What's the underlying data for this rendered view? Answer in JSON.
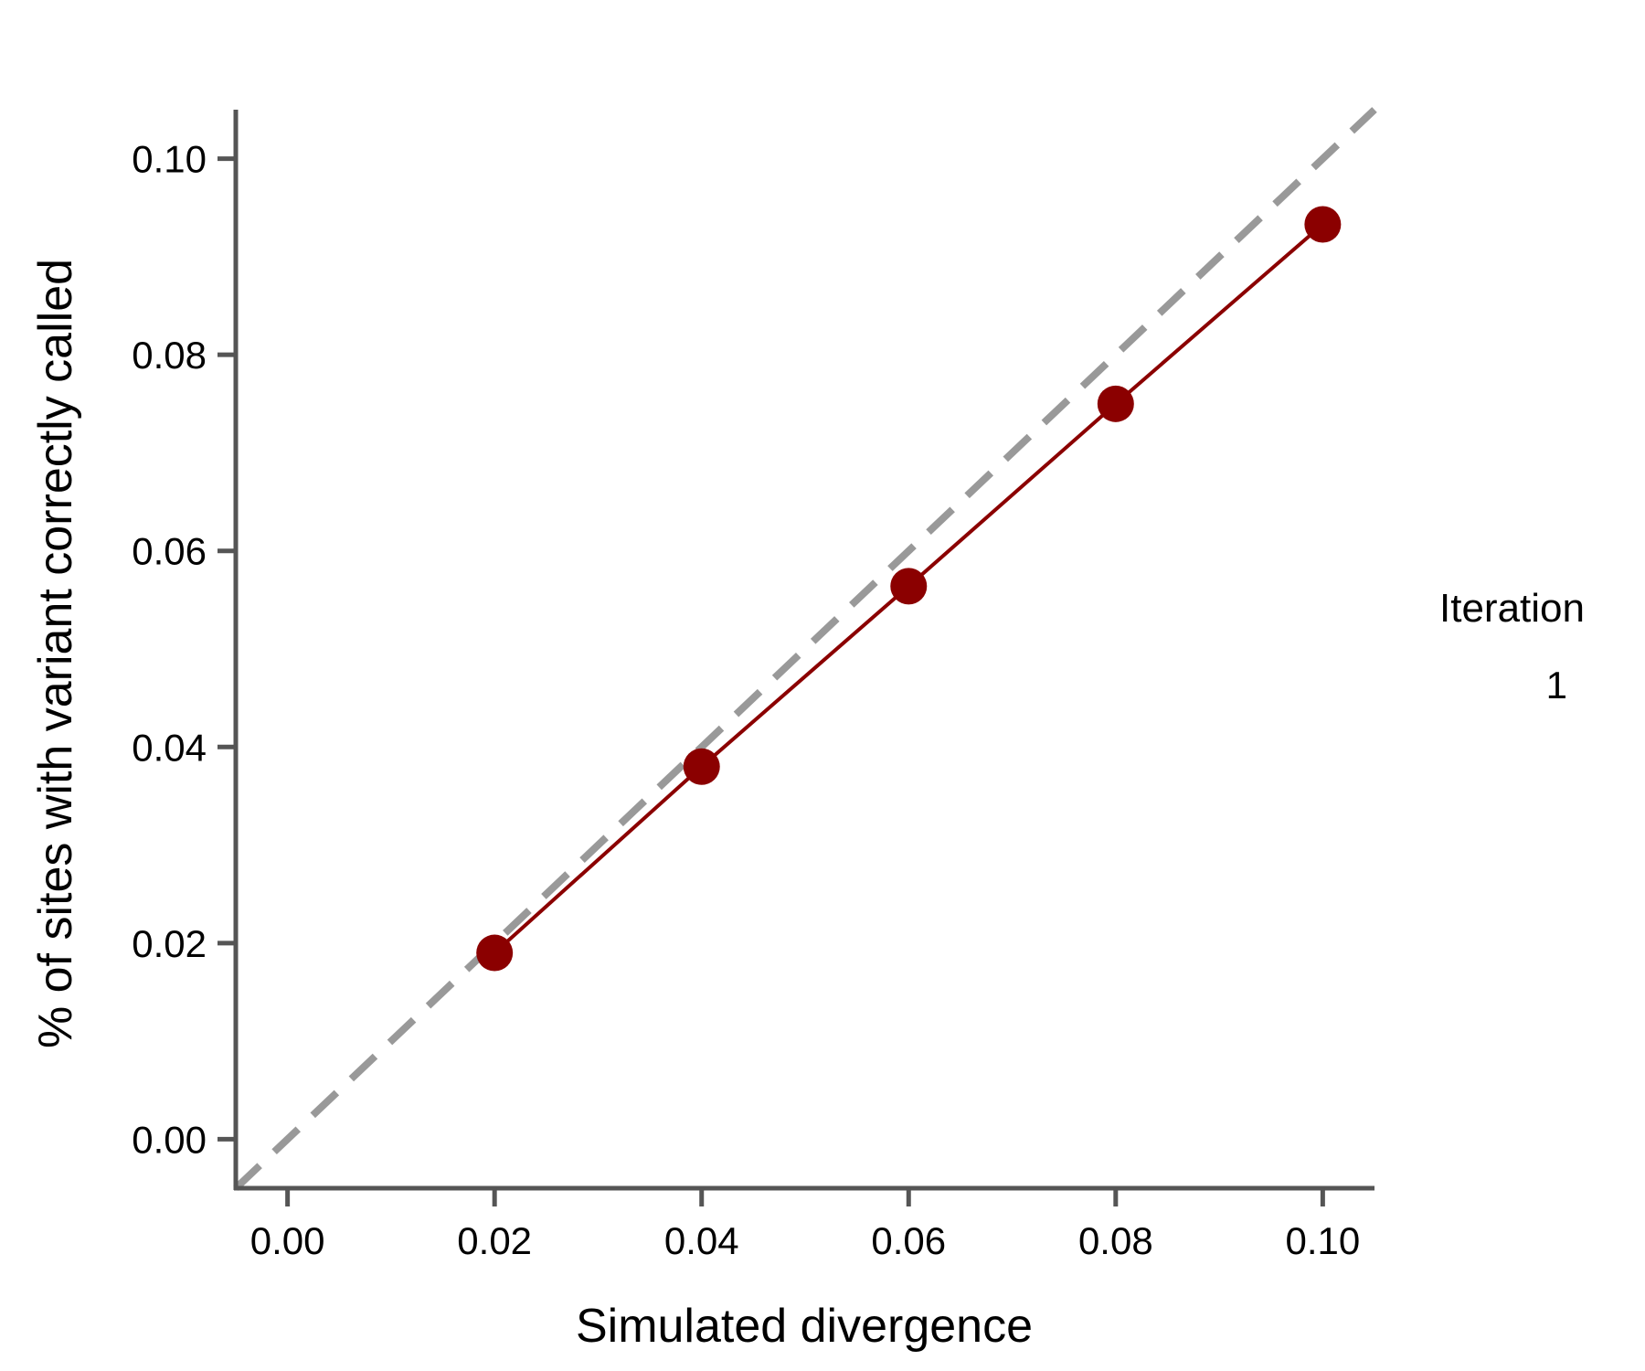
{
  "chart_data": {
    "type": "line",
    "xlabel": "Simulated divergence",
    "ylabel": "% of sites with variant correctly called",
    "xlim": [
      -0.005,
      0.105
    ],
    "ylim": [
      -0.005,
      0.105
    ],
    "x_ticks": [
      0.0,
      0.02,
      0.04,
      0.06,
      0.08,
      0.1
    ],
    "x_tick_labels": [
      "0.00",
      "0.02",
      "0.04",
      "0.06",
      "0.08",
      "0.10"
    ],
    "y_ticks": [
      0.0,
      0.02,
      0.04,
      0.06,
      0.08,
      0.1
    ],
    "y_tick_labels": [
      "0.00",
      "0.02",
      "0.04",
      "0.06",
      "0.08",
      "0.10"
    ],
    "grid": false,
    "reference_line": {
      "kind": "identity",
      "style": "dashed",
      "color": "#999999"
    },
    "series": [
      {
        "name": "1",
        "color": "#8b0000",
        "x": [
          0.02,
          0.04,
          0.06,
          0.08,
          0.1
        ],
        "y": [
          0.019,
          0.038,
          0.0564,
          0.075,
          0.0933
        ]
      }
    ],
    "legend": {
      "title": "Iteration",
      "placement": "right",
      "entries": [
        "1"
      ]
    }
  }
}
